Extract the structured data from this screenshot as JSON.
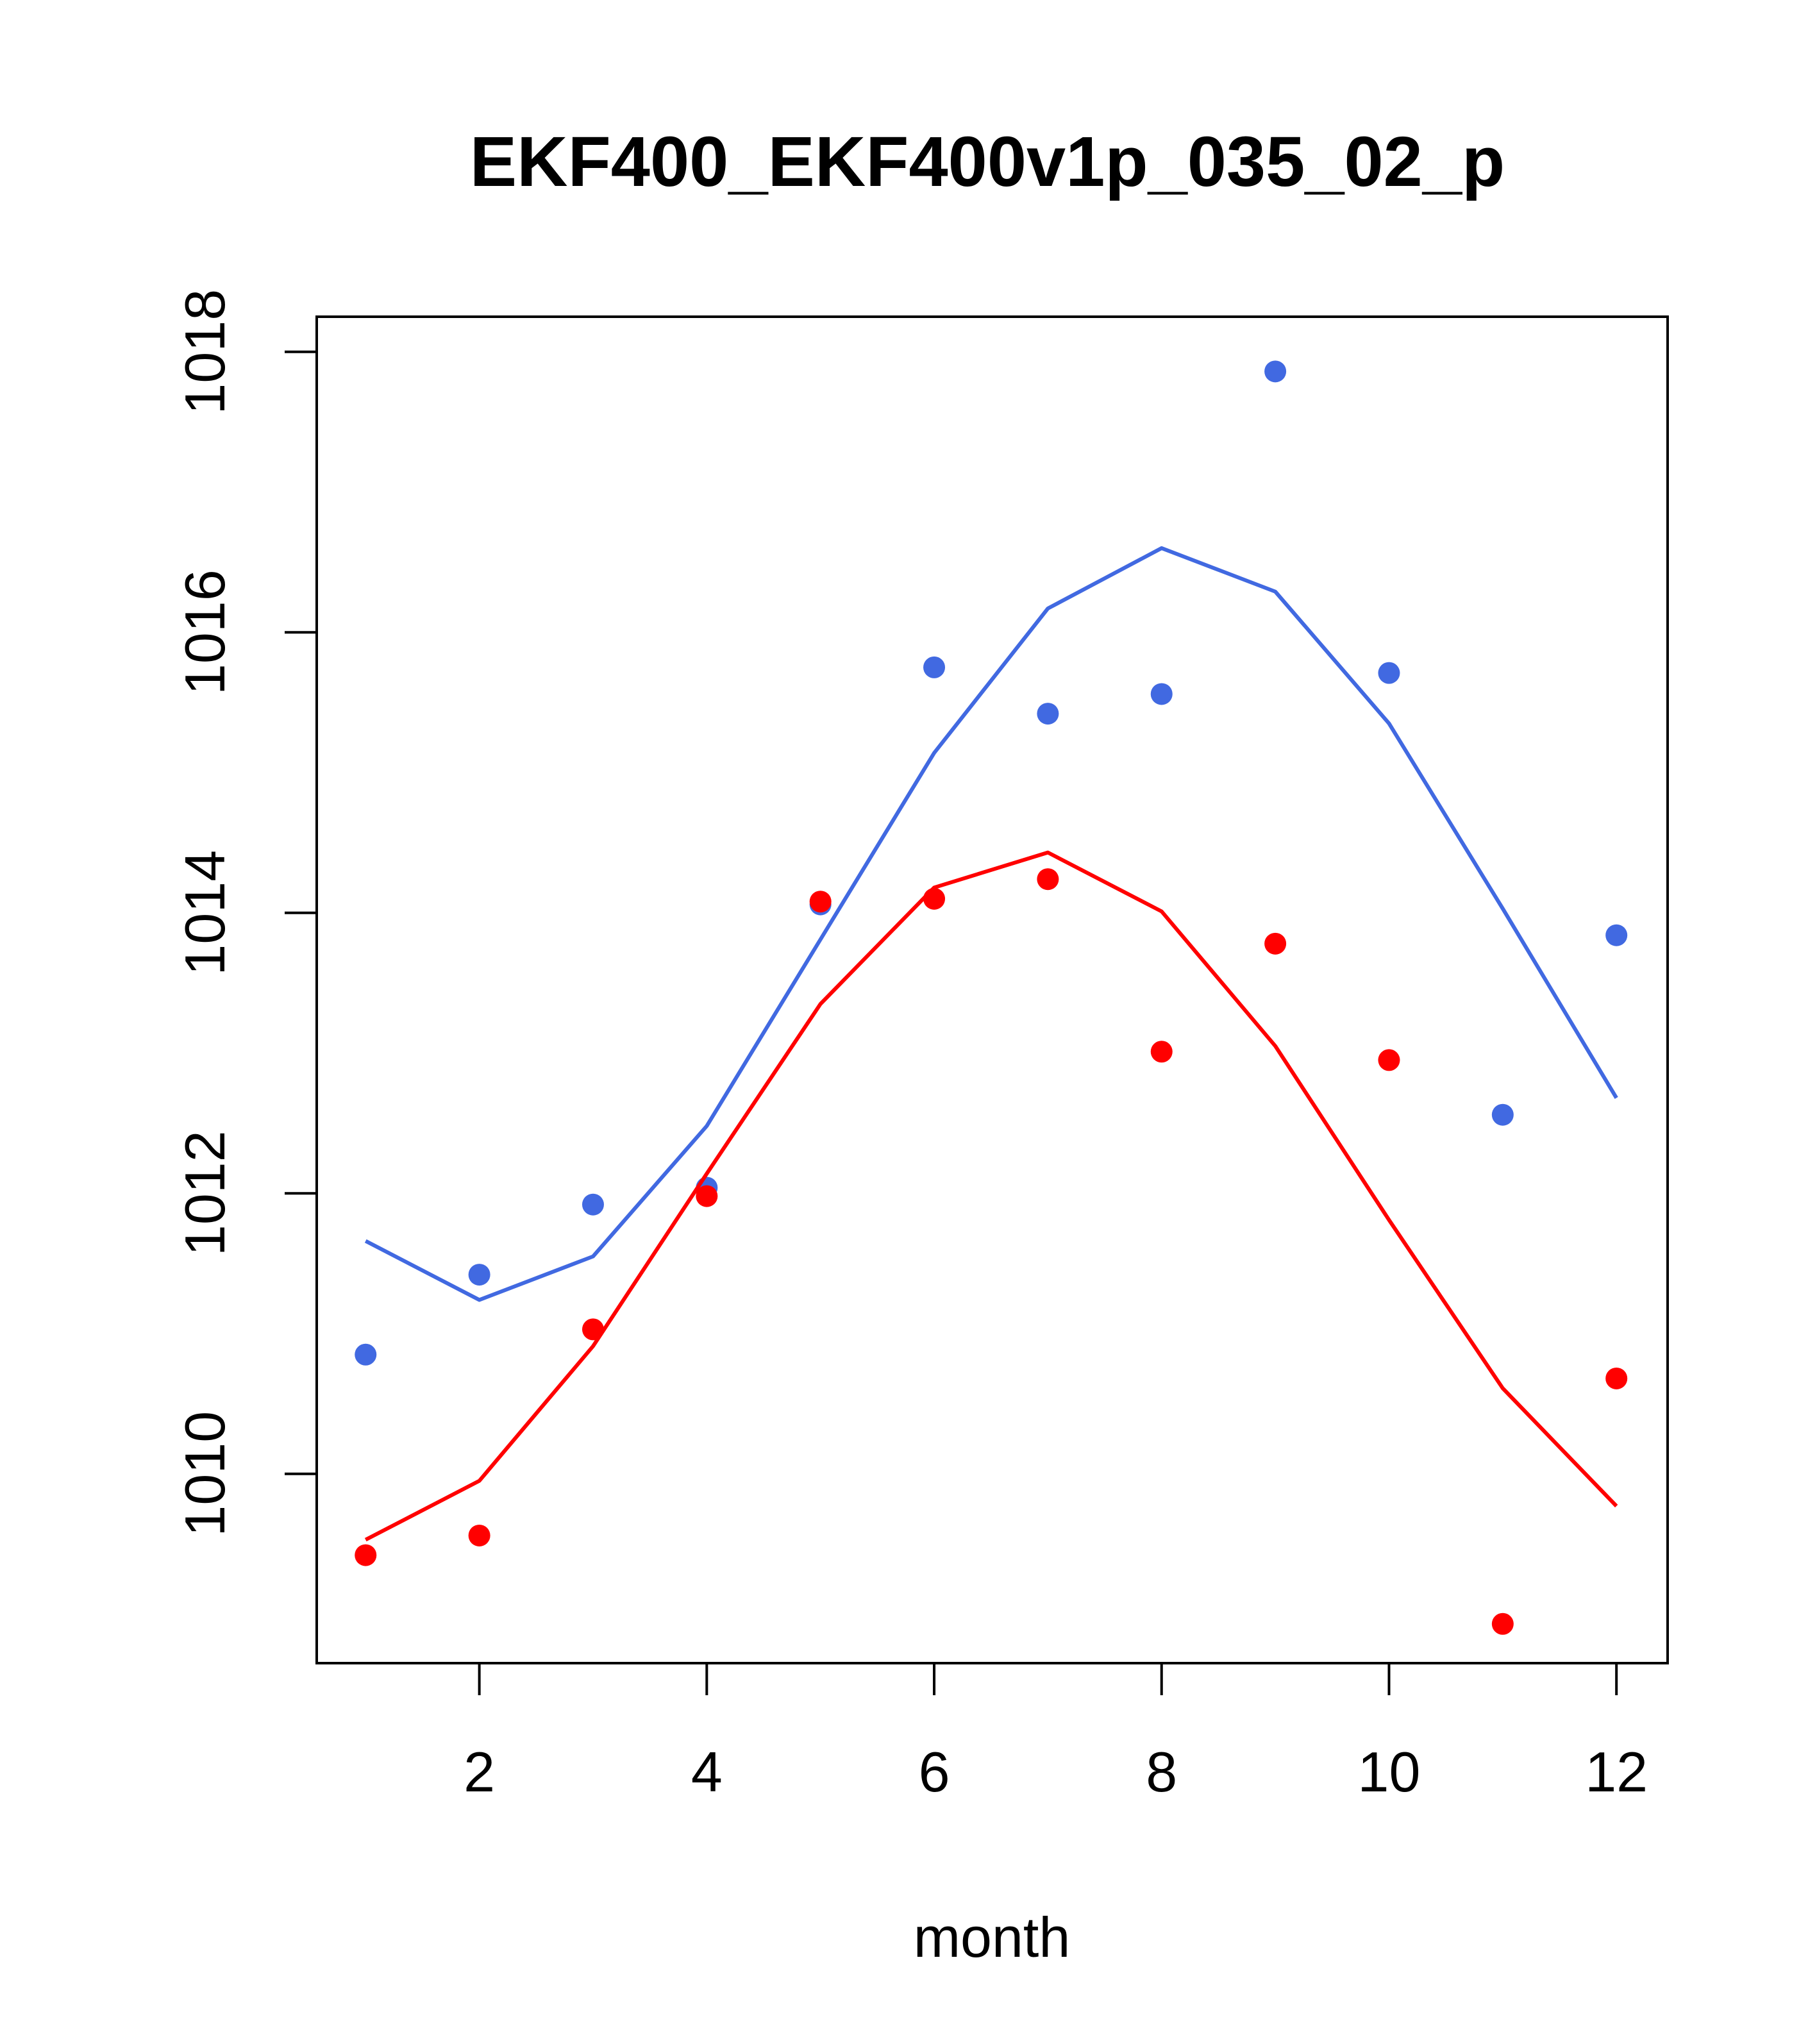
{
  "chart_data": {
    "type": "line",
    "title": "EKF400_EKF400v1p_035_02_p",
    "xlabel": "month",
    "ylabel": "",
    "xlim": [
      0.57,
      12.45
    ],
    "ylim": [
      1008.65,
      1018.25
    ],
    "xticks": [
      2,
      4,
      6,
      8,
      10,
      12
    ],
    "yticks": [
      1010,
      1012,
      1014,
      1016,
      1018
    ],
    "grid": false,
    "legend": "none",
    "x": [
      1,
      2,
      3,
      4,
      5,
      6,
      7,
      8,
      9,
      10,
      11,
      12
    ],
    "series": [
      {
        "name": "blue points",
        "kind": "points",
        "color": "#4169E1",
        "values": [
          1010.85,
          1011.42,
          1011.92,
          1012.04,
          1014.06,
          1015.75,
          1015.42,
          1015.56,
          1017.86,
          1015.71,
          1012.56,
          1013.84
        ]
      },
      {
        "name": "blue line",
        "kind": "line",
        "color": "#4169E1",
        "values": [
          1011.66,
          1011.24,
          1011.55,
          1012.48,
          1013.81,
          1015.14,
          1016.17,
          1016.6,
          1016.29,
          1015.35,
          1014.03,
          1012.68
        ]
      },
      {
        "name": "red points",
        "kind": "points",
        "color": "#FF0000",
        "values": [
          1009.42,
          1009.56,
          1011.03,
          1011.98,
          1014.08,
          1014.1,
          1014.24,
          1013.01,
          1013.78,
          1012.95,
          1008.93,
          1010.68
        ]
      },
      {
        "name": "red line",
        "kind": "line",
        "color": "#FF0000",
        "values": [
          1009.53,
          1009.95,
          1010.91,
          1012.14,
          1013.35,
          1014.18,
          1014.43,
          1014.01,
          1013.05,
          1011.81,
          1010.61,
          1009.77
        ]
      }
    ]
  }
}
